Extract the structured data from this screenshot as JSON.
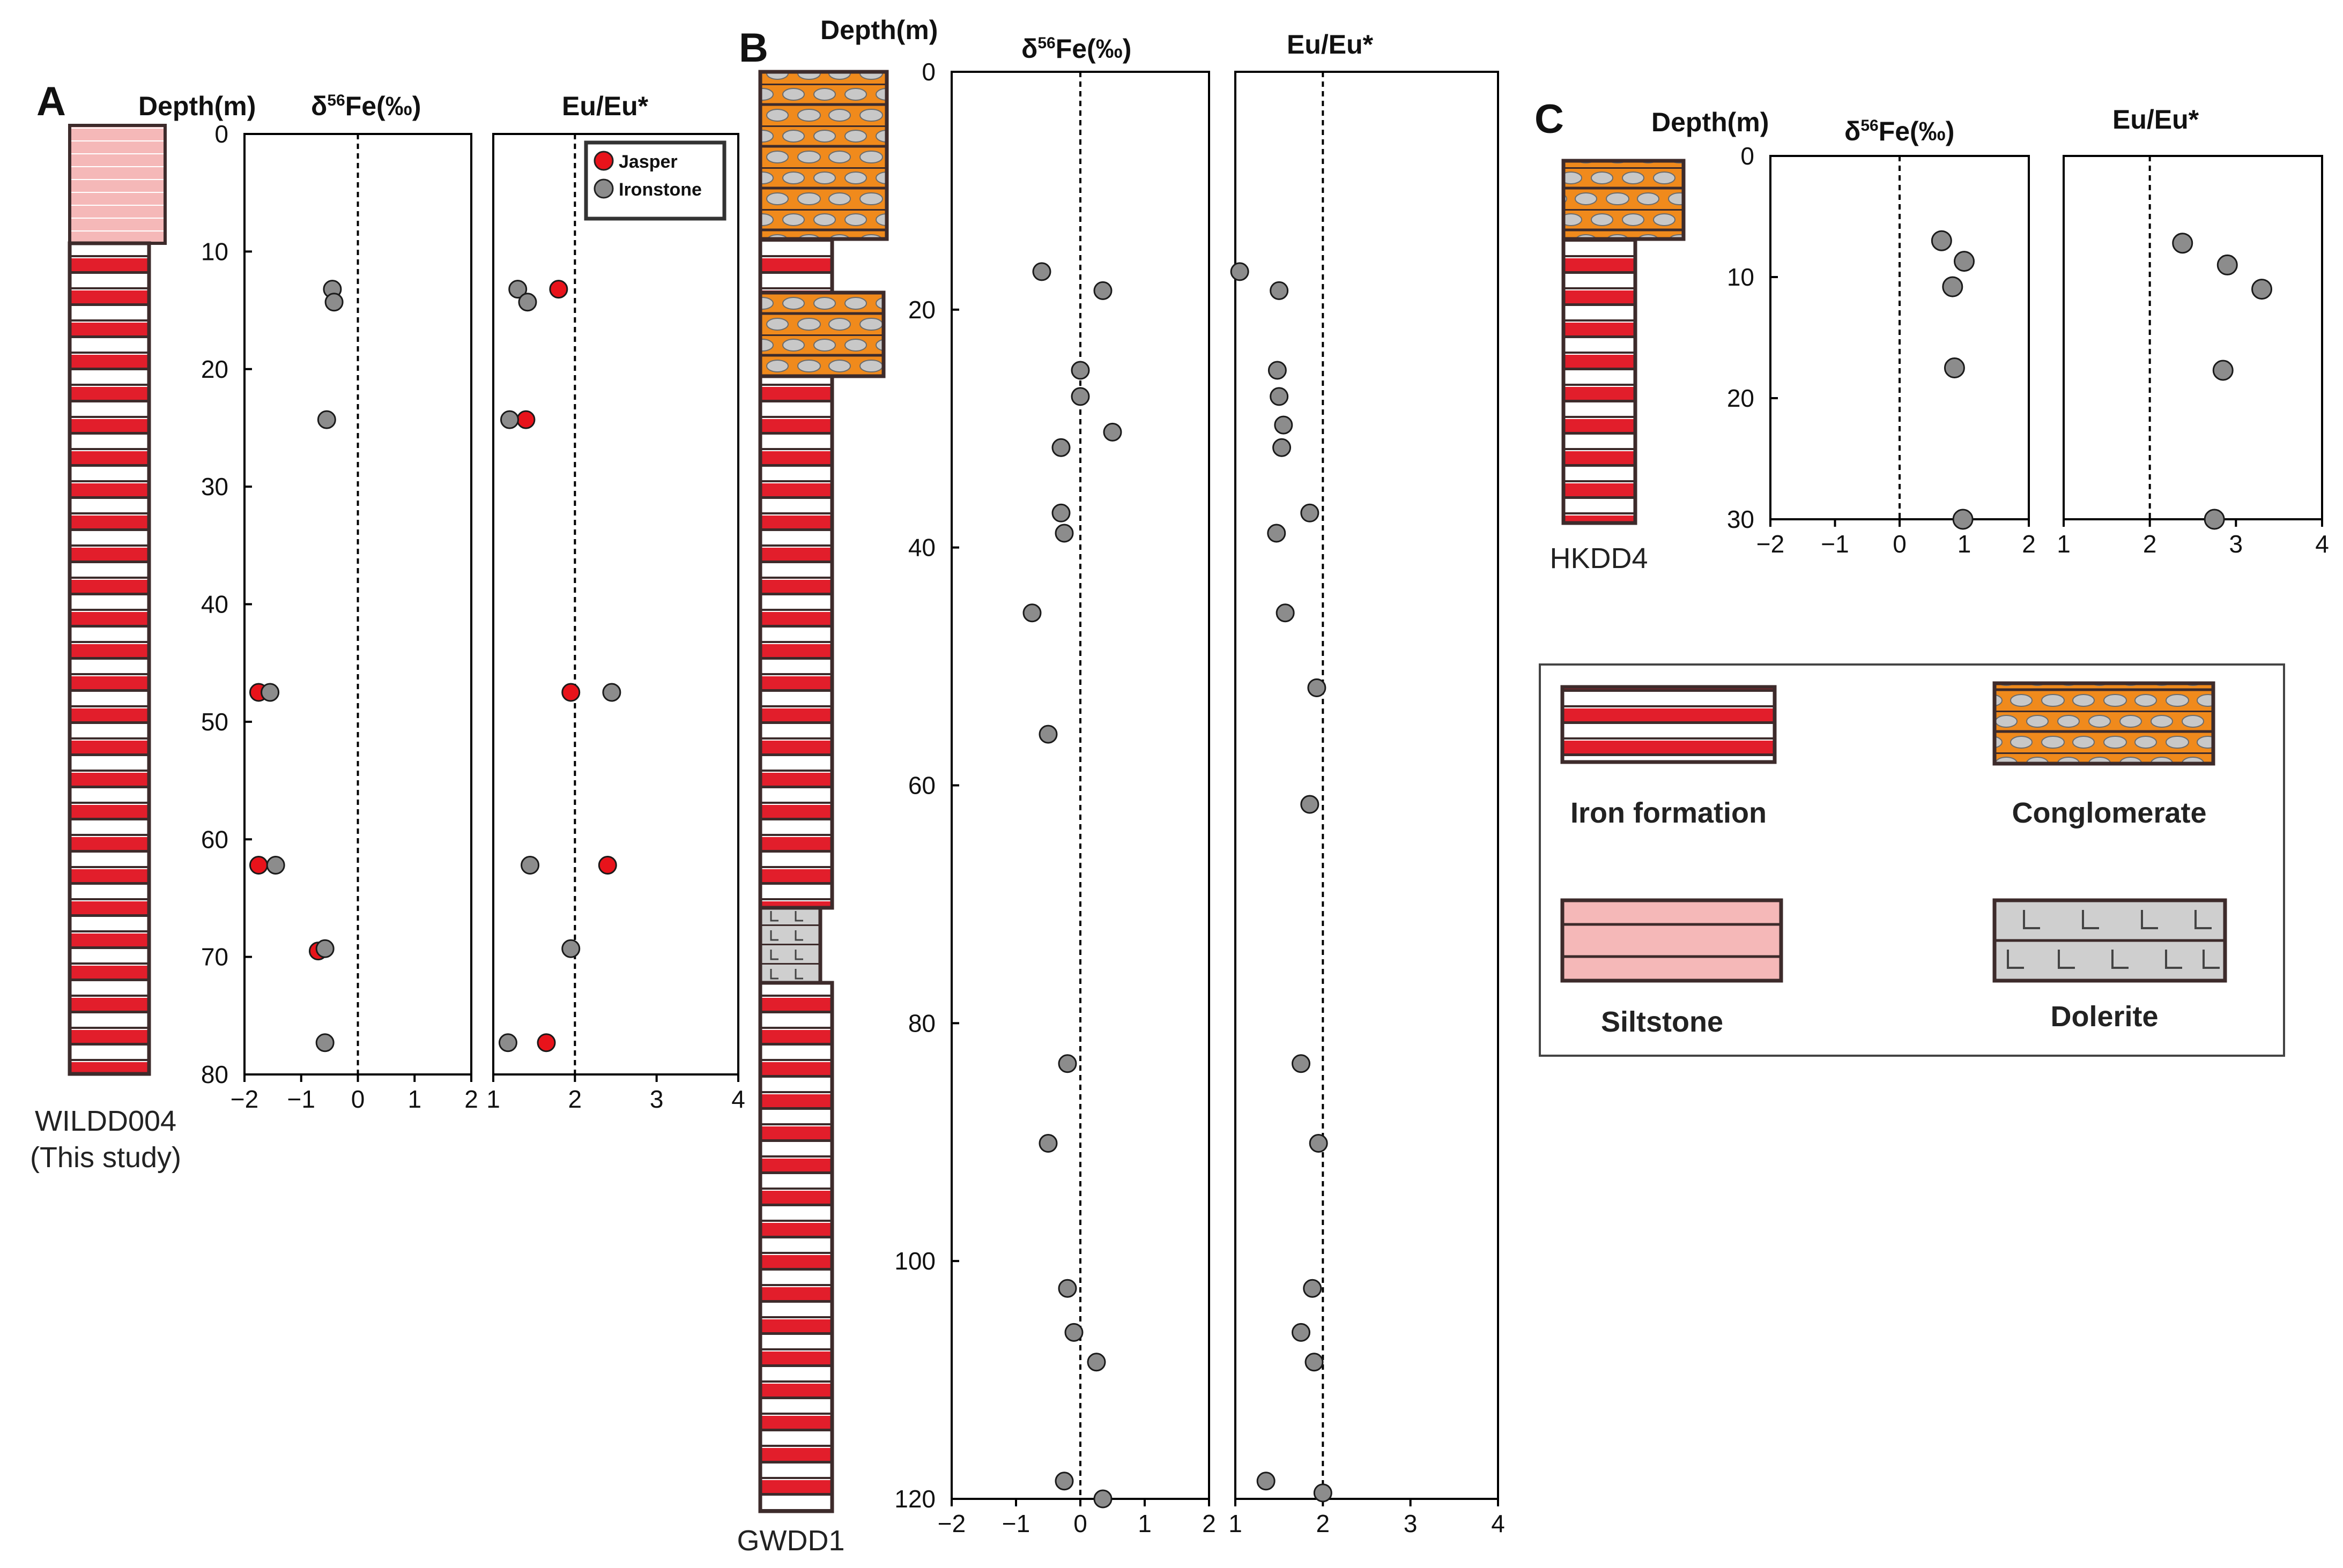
{
  "figure": {
    "panel_letters": [
      "A",
      "B",
      "C"
    ],
    "depth_label": "Depth(m)",
    "fe_label_prefix": "δ",
    "fe_label_super": "56",
    "fe_label_suffix": "Fe(‰)",
    "eu_label": "Eu/Eu*"
  },
  "cores": {
    "A": {
      "name": "WILDD004",
      "note": "(This study)"
    },
    "B": {
      "name": "GWDD1"
    },
    "C": {
      "name": "HKDD4"
    }
  },
  "legend": {
    "symbols": [
      {
        "label": "Jasper",
        "color": "#e8131b"
      },
      {
        "label": "Ironstone",
        "color": "#8c8c8c"
      }
    ],
    "lithologies": [
      {
        "key": "iron",
        "label": "Iron formation"
      },
      {
        "key": "conglomerate",
        "label": "Conglomerate"
      },
      {
        "key": "siltstone",
        "label": "Siltstone"
      },
      {
        "key": "dolerite",
        "label": "Dolerite"
      }
    ]
  },
  "colors": {
    "jasper": "#e8131b",
    "ironstone": "#8c8c8c",
    "iron_red": "#e21e2b",
    "iron_frame": "#3d2b2b",
    "conglomerate": "#f08a1c",
    "siltstone": "#f5b8b8",
    "dolerite": "#cfcfcf"
  },
  "chart_data": [
    {
      "type": "scatter",
      "panel": "A",
      "title": "δ56Fe(‰)",
      "ylabel": "Depth(m)",
      "ylim": [
        0,
        80
      ],
      "yticks": [
        0,
        10,
        20,
        30,
        40,
        50,
        60,
        70,
        80
      ],
      "xlim": [
        -2,
        2
      ],
      "xticks": [
        -2,
        -1,
        0,
        1,
        2
      ],
      "reference_line": 0,
      "series": [
        {
          "name": "Jasper",
          "points": [
            [
              -1.75,
              47.5
            ],
            [
              -1.75,
              62.2
            ],
            [
              -0.7,
              69.5
            ]
          ]
        },
        {
          "name": "Ironstone",
          "points": [
            [
              -0.45,
              13.2
            ],
            [
              -0.42,
              14.3
            ],
            [
              -0.55,
              24.3
            ],
            [
              -1.55,
              47.5
            ],
            [
              -1.45,
              62.2
            ],
            [
              -0.58,
              69.3
            ],
            [
              -0.58,
              77.3
            ]
          ]
        }
      ]
    },
    {
      "type": "scatter",
      "panel": "A",
      "title": "Eu/Eu*",
      "ylim": [
        0,
        80
      ],
      "xlim": [
        1,
        4
      ],
      "xticks": [
        1,
        2,
        3,
        4
      ],
      "reference_line": 2,
      "series": [
        {
          "name": "Jasper",
          "points": [
            [
              1.8,
              13.2
            ],
            [
              1.4,
              24.3
            ],
            [
              1.95,
              47.5
            ],
            [
              2.4,
              62.2
            ],
            [
              1.65,
              77.3
            ]
          ]
        },
        {
          "name": "Ironstone",
          "points": [
            [
              1.3,
              13.2
            ],
            [
              1.42,
              14.3
            ],
            [
              1.2,
              24.3
            ],
            [
              2.45,
              47.5
            ],
            [
              1.45,
              62.2
            ],
            [
              1.95,
              69.3
            ],
            [
              1.18,
              77.3
            ]
          ]
        }
      ]
    },
    {
      "type": "scatter",
      "panel": "B",
      "title": "δ56Fe(‰)",
      "ylabel": "Depth(m)",
      "ylim": [
        0,
        120
      ],
      "yticks": [
        0,
        20,
        40,
        60,
        80,
        100,
        120
      ],
      "xlim": [
        -2,
        2
      ],
      "xticks": [
        -2,
        -1,
        0,
        1,
        2
      ],
      "reference_line": 0,
      "series": [
        {
          "name": "Ironstone",
          "points": [
            [
              -0.6,
              16.8
            ],
            [
              0.35,
              18.4
            ],
            [
              0.0,
              25.1
            ],
            [
              0.0,
              27.3
            ],
            [
              0.5,
              30.3
            ],
            [
              -0.3,
              31.6
            ],
            [
              -0.3,
              37.1
            ],
            [
              -0.25,
              38.8
            ],
            [
              -0.75,
              45.5
            ],
            [
              -0.5,
              55.7
            ],
            [
              -0.2,
              83.4
            ],
            [
              -0.5,
              90.1
            ],
            [
              -0.2,
              102.3
            ],
            [
              -0.1,
              106.0
            ],
            [
              0.25,
              108.5
            ],
            [
              -0.25,
              118.5
            ],
            [
              0.35,
              120.0
            ]
          ]
        }
      ]
    },
    {
      "type": "scatter",
      "panel": "B",
      "title": "Eu/Eu*",
      "ylim": [
        0,
        120
      ],
      "xlim": [
        1,
        4
      ],
      "xticks": [
        1,
        2,
        3,
        4
      ],
      "reference_line": 2,
      "series": [
        {
          "name": "Ironstone",
          "points": [
            [
              1.05,
              16.8
            ],
            [
              1.5,
              18.4
            ],
            [
              1.48,
              25.1
            ],
            [
              1.5,
              27.3
            ],
            [
              1.55,
              29.7
            ],
            [
              1.53,
              31.6
            ],
            [
              1.85,
              37.1
            ],
            [
              1.47,
              38.8
            ],
            [
              1.57,
              45.5
            ],
            [
              1.93,
              51.8
            ],
            [
              1.85,
              61.6
            ],
            [
              1.75,
              83.4
            ],
            [
              1.95,
              90.1
            ],
            [
              1.88,
              102.3
            ],
            [
              1.75,
              106.0
            ],
            [
              1.9,
              108.5
            ],
            [
              1.35,
              118.5
            ],
            [
              2.0,
              119.5
            ]
          ]
        }
      ]
    },
    {
      "type": "scatter",
      "panel": "C",
      "title": "δ56Fe(‰)",
      "ylabel": "Depth(m)",
      "ylim": [
        0,
        30
      ],
      "yticks": [
        0,
        10,
        20,
        30
      ],
      "xlim": [
        -2,
        2
      ],
      "xticks": [
        -2,
        -1,
        0,
        1,
        2
      ],
      "reference_line": 0,
      "series": [
        {
          "name": "Ironstone",
          "points": [
            [
              0.65,
              7.0
            ],
            [
              1.0,
              8.7
            ],
            [
              0.82,
              10.8
            ],
            [
              0.85,
              17.5
            ],
            [
              0.98,
              30.0
            ]
          ]
        }
      ]
    },
    {
      "type": "scatter",
      "panel": "C",
      "title": "Eu/Eu*",
      "ylim": [
        0,
        30
      ],
      "xlim": [
        1,
        4
      ],
      "xticks": [
        1,
        2,
        3,
        4
      ],
      "reference_line": 2,
      "series": [
        {
          "name": "Ironstone",
          "points": [
            [
              2.38,
              7.2
            ],
            [
              2.9,
              9.0
            ],
            [
              3.3,
              11.0
            ],
            [
              2.85,
              17.7
            ],
            [
              2.75,
              30.0
            ]
          ]
        }
      ]
    }
  ]
}
